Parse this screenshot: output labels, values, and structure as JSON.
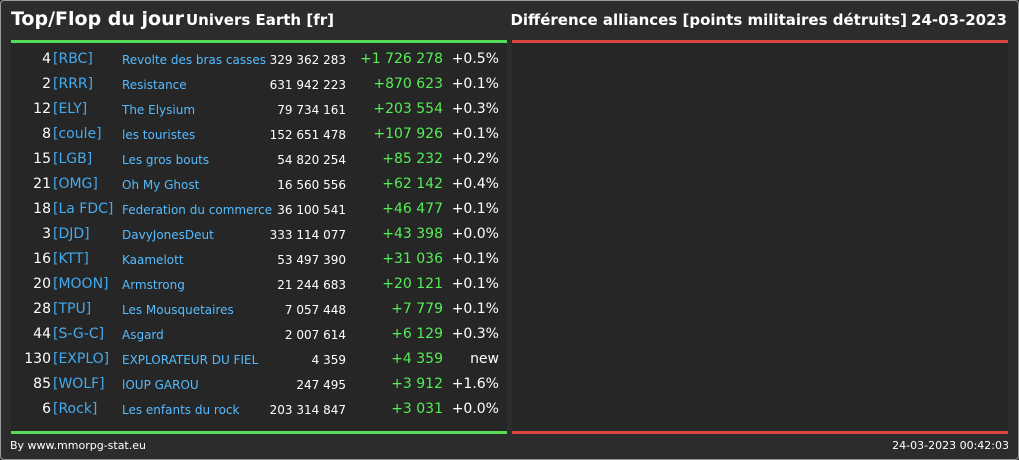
{
  "header": {
    "title": "Top/Flop du jour",
    "universe": "Univers Earth [fr]",
    "subtitle": "Différence alliances [points militaires détruits]",
    "date": "24-03-2023"
  },
  "colors": {
    "gain": "#55ee55",
    "loss": "#d9473f",
    "tag": "#44aaee"
  },
  "rows": [
    {
      "rank": "4",
      "tag": "[RBC]",
      "name": "Revolte des bras casses",
      "points": "329 362 283",
      "delta": "+1 726 278",
      "pct": "+0.5%"
    },
    {
      "rank": "2",
      "tag": "[RRR]",
      "name": "Resistance",
      "points": "631 942 223",
      "delta": "+870 623",
      "pct": "+0.1%"
    },
    {
      "rank": "12",
      "tag": "[ELY]",
      "name": "The Elysium",
      "points": "79 734 161",
      "delta": "+203 554",
      "pct": "+0.3%"
    },
    {
      "rank": "8",
      "tag": "[coule]",
      "name": "les touristes",
      "points": "152 651 478",
      "delta": "+107 926",
      "pct": "+0.1%"
    },
    {
      "rank": "15",
      "tag": "[LGB]",
      "name": "Les gros bouts",
      "points": "54 820 254",
      "delta": "+85 232",
      "pct": "+0.2%"
    },
    {
      "rank": "21",
      "tag": "[OMG]",
      "name": "Oh My Ghost",
      "points": "16 560 556",
      "delta": "+62 142",
      "pct": "+0.4%"
    },
    {
      "rank": "18",
      "tag": "[La FDC]",
      "name": "Federation du commerce",
      "points": "36 100 541",
      "delta": "+46 477",
      "pct": "+0.1%"
    },
    {
      "rank": "3",
      "tag": "[DJD]",
      "name": "DavyJonesDeut",
      "points": "333 114 077",
      "delta": "+43 398",
      "pct": "+0.0%"
    },
    {
      "rank": "16",
      "tag": "[KTT]",
      "name": "Kaamelott",
      "points": "53 497 390",
      "delta": "+31 036",
      "pct": "+0.1%"
    },
    {
      "rank": "20",
      "tag": "[MOON]",
      "name": "Armstrong",
      "points": "21 244 683",
      "delta": "+20 121",
      "pct": "+0.1%"
    },
    {
      "rank": "28",
      "tag": "[TPU]",
      "name": "Les Mousquetaires",
      "points": "7 057 448",
      "delta": "+7 779",
      "pct": "+0.1%"
    },
    {
      "rank": "44",
      "tag": "[S-G-C]",
      "name": "Asgard",
      "points": "2 007 614",
      "delta": "+6 129",
      "pct": "+0.3%"
    },
    {
      "rank": "130",
      "tag": "[EXPLO]",
      "name": "EXPLORATEUR DU FIEL",
      "points": "4 359",
      "delta": "+4 359",
      "pct": "new"
    },
    {
      "rank": "85",
      "tag": "[WOLF]",
      "name": "lOUP GAROU",
      "points": "247 495",
      "delta": "+3 912",
      "pct": "+1.6%"
    },
    {
      "rank": "6",
      "tag": "[Rock]",
      "name": "Les enfants du rock",
      "points": "203 314 847",
      "delta": "+3 031",
      "pct": "+0.0%"
    }
  ],
  "footer": {
    "source": "By www.mmorpg-stat.eu",
    "timestamp": "24-03-2023 00:42:03"
  }
}
